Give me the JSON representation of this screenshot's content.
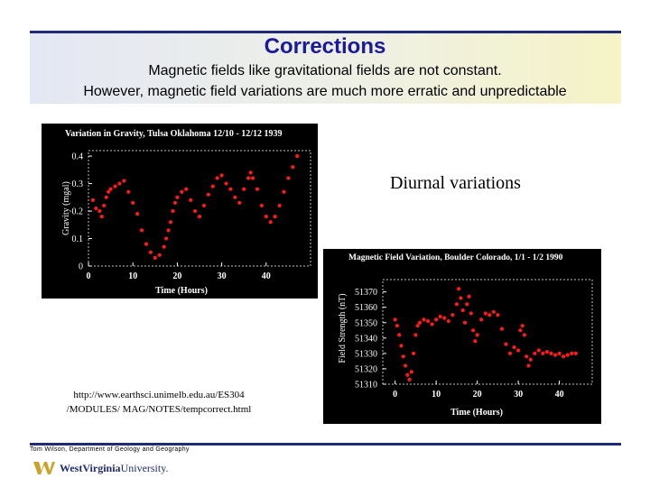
{
  "slide": {
    "title": "Corrections",
    "subtitle_line1": "Magnetic fields like gravitational fields are not constant.",
    "subtitle_line2": "However, magnetic field variations are much more erratic and unpredictable",
    "diurnal_label": "Diurnal variations",
    "url_line1": "http://www.earthsci.unimelb.edu.au/ES304",
    "url_line2": "/MODULES/ MAG/NOTES/tempcorrect.html",
    "footer": "Tom Wilson, Department of Geology and Geography",
    "logo_text_a": "WestVirginia",
    "logo_text_b": "University."
  },
  "colors": {
    "title": "#1a1a9a",
    "rule": "#1f2a78",
    "data": "#ff1a1a",
    "panel_bg": "#000000"
  },
  "chart_data": [
    {
      "type": "scatter",
      "title": "Variation in Gravity, Tulsa Oklahoma 12/10 - 12/12 1939",
      "xlabel": "Time (Hours)",
      "ylabel": "Gravity (mgal)",
      "xlim": [
        0,
        50
      ],
      "ylim": [
        0,
        0.42
      ],
      "xticks": [
        0,
        10,
        20,
        30,
        40
      ],
      "xtick_labels": [
        "0",
        "10",
        "20",
        "30",
        "40"
      ],
      "yticks": [
        0,
        0.1,
        0.2,
        0.3,
        0.4
      ],
      "ytick_labels": [
        "0",
        "0.1",
        "0.2",
        "0.3",
        "0.4"
      ],
      "series": [
        {
          "x": [
            1,
            1.7,
            2.5,
            3,
            3.5,
            4,
            4.5,
            5,
            6,
            7,
            8,
            9,
            10,
            11,
            12,
            13,
            14,
            15,
            16,
            17,
            17.5,
            18,
            18.5,
            19,
            19.5,
            20,
            21,
            22,
            23,
            24,
            25,
            26,
            27,
            28,
            29,
            30,
            31,
            32,
            33,
            34,
            35,
            36,
            36.5,
            37,
            38,
            39,
            40,
            41,
            42,
            43,
            44,
            45,
            46,
            47
          ],
          "y": [
            0.24,
            0.21,
            0.2,
            0.18,
            0.22,
            0.25,
            0.27,
            0.28,
            0.29,
            0.3,
            0.31,
            0.27,
            0.23,
            0.19,
            0.13,
            0.08,
            0.05,
            0.03,
            0.04,
            0.07,
            0.1,
            0.13,
            0.16,
            0.2,
            0.23,
            0.25,
            0.27,
            0.28,
            0.24,
            0.2,
            0.18,
            0.22,
            0.26,
            0.29,
            0.32,
            0.33,
            0.3,
            0.28,
            0.25,
            0.23,
            0.28,
            0.32,
            0.34,
            0.32,
            0.28,
            0.22,
            0.18,
            0.16,
            0.18,
            0.22,
            0.27,
            0.32,
            0.36,
            0.4
          ]
        }
      ]
    },
    {
      "type": "scatter",
      "title": "Magnetic Field Variation, Boulder Colorado, 1/1 - 1/2 1990",
      "xlabel": "Time (Hours)",
      "ylabel": "Field Strength (nT)",
      "xlim": [
        -3,
        48
      ],
      "ylim": [
        51310,
        51378
      ],
      "xticks": [
        0,
        10,
        20,
        30,
        40
      ],
      "xtick_labels": [
        "0",
        "10",
        "20",
        "30",
        "40"
      ],
      "yticks": [
        51310,
        51320,
        51330,
        51340,
        51350,
        51360,
        51370
      ],
      "ytick_labels": [
        "51310",
        "51320",
        "51330",
        "51340",
        "51350",
        "51360",
        "51370"
      ],
      "series": [
        {
          "x": [
            0,
            0.5,
            1,
            1.5,
            2,
            2.5,
            3,
            3.5,
            4,
            4.5,
            5,
            5.5,
            6,
            7,
            8,
            9,
            10,
            11,
            12,
            13,
            14,
            15,
            15.5,
            16,
            16.5,
            17,
            17.5,
            18,
            18.5,
            19,
            19.5,
            20,
            21,
            22,
            23,
            24,
            25,
            26,
            27,
            28,
            29,
            30,
            30.5,
            31,
            31.5,
            32,
            32.5,
            33,
            34,
            35,
            36,
            37,
            38,
            39,
            40,
            41,
            42,
            43,
            44
          ],
          "y": [
            51352,
            51348,
            51342,
            51335,
            51328,
            51322,
            51316,
            51313,
            51318,
            51330,
            51342,
            51348,
            51350,
            51352,
            51351,
            51349,
            51352,
            51354,
            51353,
            51351,
            51355,
            51362,
            51372,
            51366,
            51358,
            51350,
            51362,
            51367,
            51356,
            51345,
            51338,
            51342,
            51352,
            51356,
            51355,
            51357,
            51355,
            51346,
            51336,
            51330,
            51334,
            51332,
            51345,
            51348,
            51342,
            51328,
            51322,
            51326,
            51330,
            51332,
            51330,
            51331,
            51330,
            51329,
            51330,
            51328,
            51329,
            51330,
            51330
          ]
        }
      ]
    }
  ]
}
